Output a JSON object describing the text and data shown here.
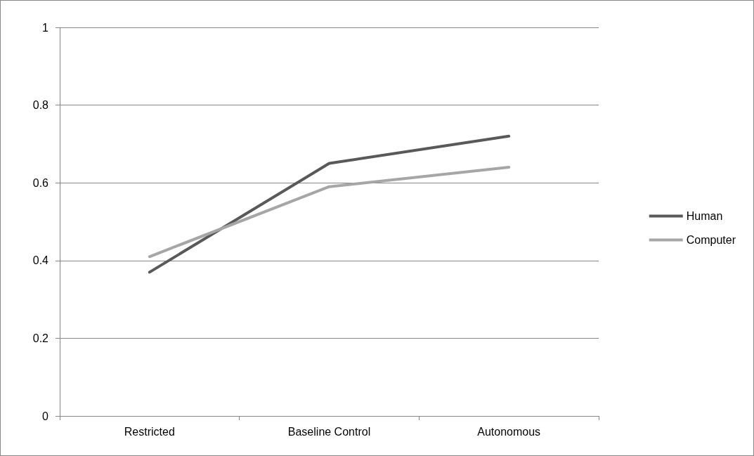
{
  "chart_data": {
    "type": "line",
    "categories": [
      "Restricted",
      "Baseline Control",
      "Autonomous"
    ],
    "series": [
      {
        "name": "Human",
        "color": "#595959",
        "values": [
          0.37,
          0.65,
          0.72
        ]
      },
      {
        "name": "Computer",
        "color": "#a6a6a6",
        "values": [
          0.41,
          0.59,
          0.64
        ]
      }
    ],
    "ylim": [
      0,
      1
    ],
    "yticks": [
      0,
      0.2,
      0.4,
      0.6,
      0.8,
      1
    ],
    "grid": "y",
    "legend": "right",
    "marker": "none",
    "line_style": "solid"
  }
}
